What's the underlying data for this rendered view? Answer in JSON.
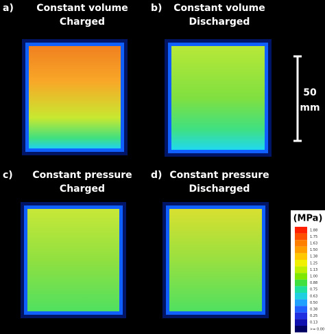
{
  "panels": [
    {
      "letter": "a)",
      "title": "Constant volume",
      "subtitle": "Charged"
    },
    {
      "letter": "b)",
      "title": "Constant volume",
      "subtitle": "Discharged"
    },
    {
      "letter": "c)",
      "title": "Constant pressure",
      "subtitle": "Charged"
    },
    {
      "letter": "d)",
      "title": "Constant pressure",
      "subtitle": "Discharged"
    }
  ],
  "scale_bar": {
    "value": "50",
    "unit": "mm"
  },
  "colorbar": {
    "unit": "(MPa)",
    "labels": [
      "1.88",
      "1.75",
      "1.63",
      "1.50",
      "1.38",
      "1.25",
      "1.13",
      "1.00",
      "0.88",
      "0.75",
      "0.63",
      "0.50",
      "0.38",
      "0.25",
      "0.13",
      ">= 0.00"
    ]
  }
}
